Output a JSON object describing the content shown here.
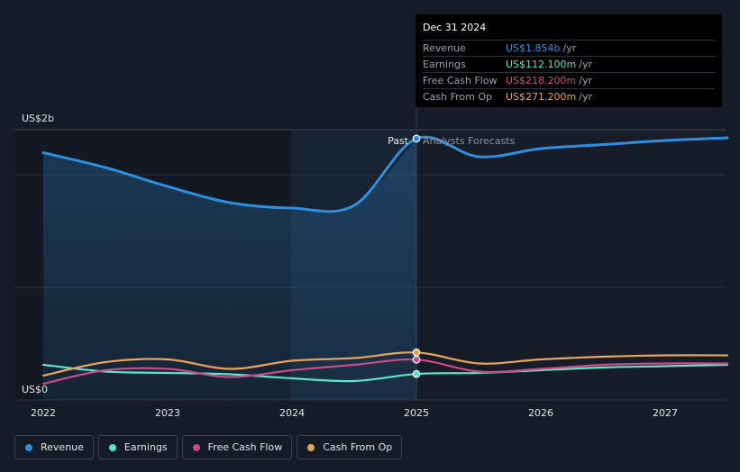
{
  "chart_data": {
    "type": "line",
    "y_unit_top": "US$2b",
    "y_unit_bottom": "US$0",
    "ylim": [
      0,
      2.0
    ],
    "y_unit": "US$ billions",
    "xlim": [
      2021.9,
      2027.5
    ],
    "x_ticks": [
      "2022",
      "2023",
      "2024",
      "2025",
      "2026",
      "2027"
    ],
    "past_label": "Past",
    "forecast_label": "Analysts Forecasts",
    "split_x": 2025.0,
    "series": [
      {
        "name": "Revenue",
        "color": "#2d8fdc",
        "points": [
          [
            2022.0,
            1.75
          ],
          [
            2022.5,
            1.64
          ],
          [
            2023.0,
            1.5
          ],
          [
            2023.5,
            1.38
          ],
          [
            2024.0,
            1.34
          ],
          [
            2024.5,
            1.36
          ],
          [
            2025.0,
            1.854
          ],
          [
            2025.5,
            1.72
          ],
          [
            2026.0,
            1.78
          ],
          [
            2026.5,
            1.81
          ],
          [
            2027.0,
            1.84
          ],
          [
            2027.5,
            1.86
          ]
        ]
      },
      {
        "name": "Earnings",
        "color": "#5be3cc",
        "points": [
          [
            2022.0,
            0.18
          ],
          [
            2022.5,
            0.13
          ],
          [
            2023.0,
            0.12
          ],
          [
            2023.5,
            0.11
          ],
          [
            2024.0,
            0.08
          ],
          [
            2024.5,
            0.06
          ],
          [
            2025.0,
            0.1121
          ],
          [
            2025.5,
            0.12
          ],
          [
            2026.0,
            0.14
          ],
          [
            2026.5,
            0.16
          ],
          [
            2027.0,
            0.17
          ],
          [
            2027.5,
            0.18
          ]
        ]
      },
      {
        "name": "Free Cash Flow",
        "color": "#c94b86",
        "points": [
          [
            2022.0,
            0.04
          ],
          [
            2022.5,
            0.14
          ],
          [
            2023.0,
            0.15
          ],
          [
            2023.5,
            0.09
          ],
          [
            2024.0,
            0.14
          ],
          [
            2024.5,
            0.18
          ],
          [
            2025.0,
            0.2182
          ],
          [
            2025.5,
            0.13
          ],
          [
            2026.0,
            0.15
          ],
          [
            2026.5,
            0.18
          ],
          [
            2027.0,
            0.19
          ],
          [
            2027.5,
            0.19
          ]
        ]
      },
      {
        "name": "Cash From Op",
        "color": "#e6a45a",
        "points": [
          [
            2022.0,
            0.1
          ],
          [
            2022.5,
            0.2
          ],
          [
            2023.0,
            0.22
          ],
          [
            2023.5,
            0.15
          ],
          [
            2024.0,
            0.21
          ],
          [
            2024.5,
            0.23
          ],
          [
            2025.0,
            0.2712
          ],
          [
            2025.5,
            0.19
          ],
          [
            2026.0,
            0.22
          ],
          [
            2026.5,
            0.24
          ],
          [
            2027.0,
            0.25
          ],
          [
            2027.5,
            0.25
          ]
        ]
      }
    ],
    "grid": true,
    "legend_position": "bottom-left"
  },
  "tooltip": {
    "date": "Dec 31 2024",
    "rows": [
      {
        "label": "Revenue",
        "value": "US$1.854b",
        "unit": "/yr",
        "color": "#2d8fdc"
      },
      {
        "label": "Earnings",
        "value": "US$112.100m",
        "unit": "/yr",
        "color": "#5be3cc"
      },
      {
        "label": "Free Cash Flow",
        "value": "US$218.200m",
        "unit": "/yr",
        "color": "#c94b86"
      },
      {
        "label": "Cash From Op",
        "value": "US$271.200m",
        "unit": "/yr",
        "color": "#e6a45a"
      }
    ]
  },
  "legend": [
    {
      "label": "Revenue",
      "color": "#2d8fdc"
    },
    {
      "label": "Earnings",
      "color": "#5be3cc"
    },
    {
      "label": "Free Cash Flow",
      "color": "#c94b86"
    },
    {
      "label": "Cash From Op",
      "color": "#e6a45a"
    }
  ]
}
